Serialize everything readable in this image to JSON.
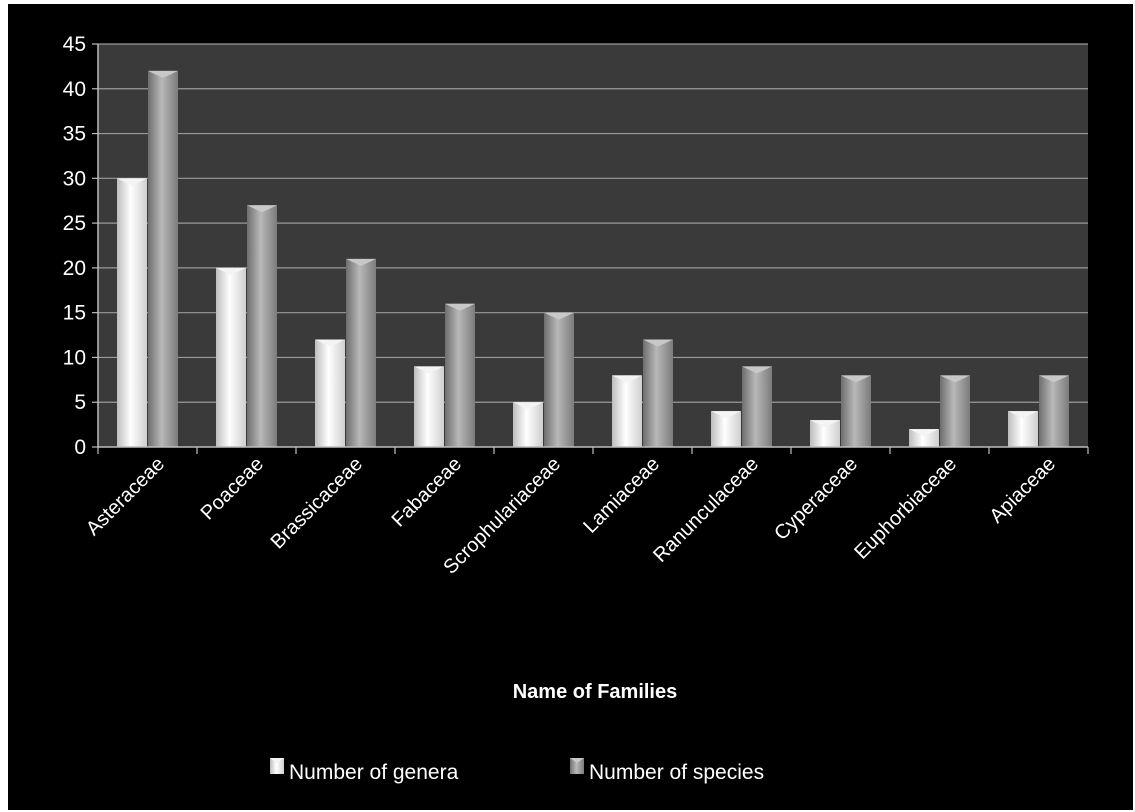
{
  "chart_data": {
    "type": "bar",
    "title": "",
    "xlabel": "Name of Families",
    "ylabel": "",
    "categories": [
      "Asteraceae",
      "Poaceae",
      "Brassicaceae",
      "Fabaceae",
      "Scrophulariaceae",
      "Lamiaceae",
      "Ranunculaceae",
      "Cyperaceae",
      "Euphorbiaceae",
      "Apiaceae"
    ],
    "series": [
      {
        "name": "Number of genera",
        "values": [
          30,
          20,
          12,
          9,
          5,
          8,
          4,
          3,
          2,
          4
        ],
        "color": "#e8e8e8"
      },
      {
        "name": "Number of species",
        "values": [
          42,
          27,
          21,
          16,
          15,
          12,
          9,
          8,
          8,
          8
        ],
        "color": "#9a9a9a"
      }
    ],
    "ylim": [
      0,
      45
    ],
    "yticks": [
      0,
      5,
      10,
      15,
      20,
      25,
      30,
      35,
      40,
      45
    ],
    "grid": true,
    "legend": "bottom",
    "background": "#000000",
    "plot_background": "#3a3a3a"
  }
}
